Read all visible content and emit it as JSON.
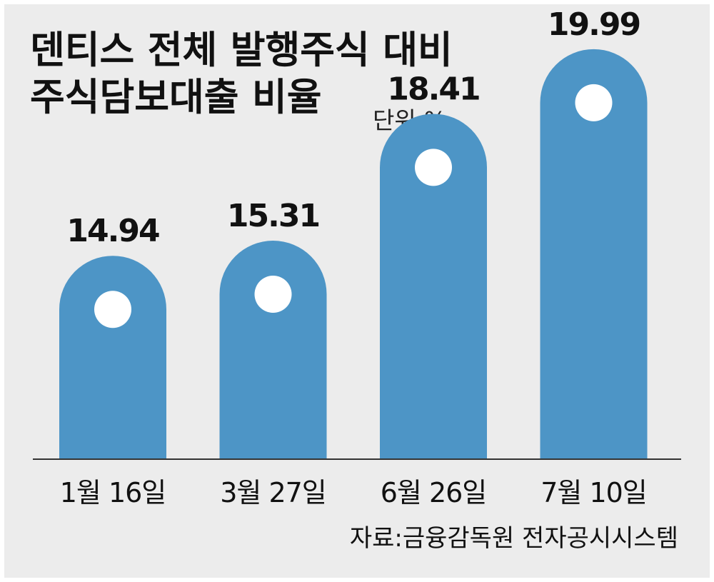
{
  "title": {
    "line1": "덴티스 전체 발행주식 대비",
    "line2": "주식담보대출 비율"
  },
  "unit_label": "단위:%",
  "source": "자료:금융감독원 전자공시시스템",
  "colors": {
    "background": "#ececec",
    "bar": "#4d95c6",
    "dot": "#ffffff",
    "text": "#111111",
    "baseline": "#333333"
  },
  "chart_data": {
    "type": "bar",
    "categories": [
      "1월 16일",
      "3월 27일",
      "6월 26일",
      "7월 10일"
    ],
    "values": [
      14.94,
      15.31,
      18.41,
      19.99
    ],
    "value_labels": [
      "14.94",
      "15.31",
      "18.41",
      "19.99"
    ],
    "title": "덴티스 전체 발행주식 대비 주식담보대출 비율",
    "xlabel": "",
    "ylabel": "",
    "unit": "%",
    "grid": false,
    "legend": "none"
  }
}
